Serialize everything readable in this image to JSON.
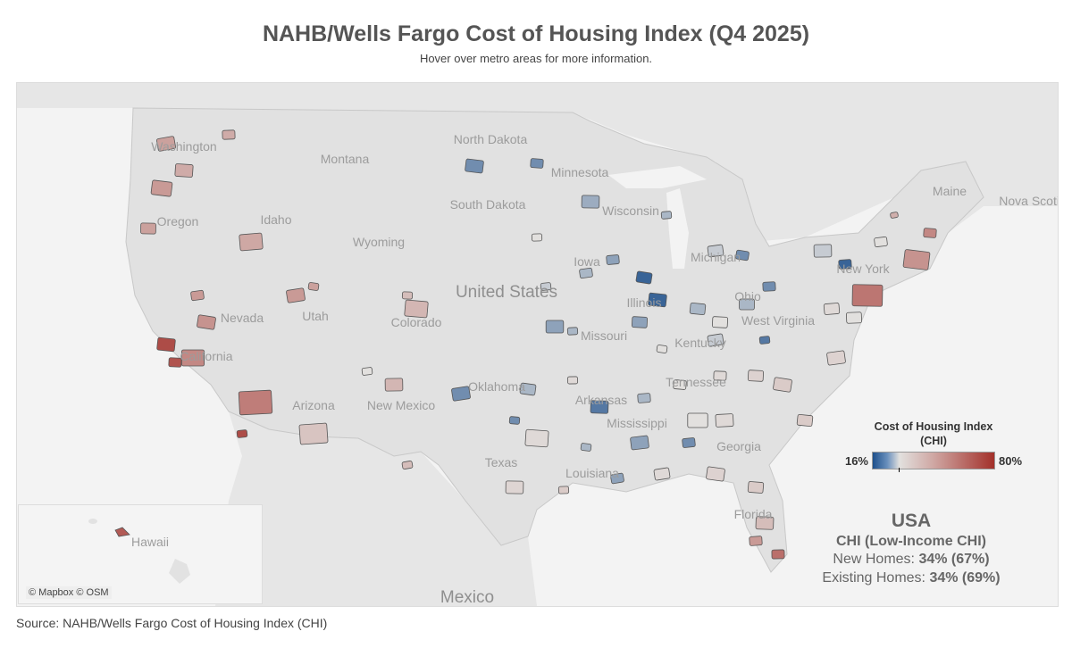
{
  "title": "NAHB/Wells Fargo Cost of Housing Index (Q4 2025)",
  "subtitle": "Hover over metro areas for more information.",
  "map": {
    "labels": [
      "Washington",
      "Montana",
      "North Dakota",
      "Minnesota",
      "South Dakota",
      "Wisconsin",
      "Maine",
      "Nova Scotia",
      "Oregon",
      "Idaho",
      "Wyoming",
      "Iowa",
      "United States",
      "Nevada",
      "Utah",
      "Colorado",
      "Missouri",
      "Illinois",
      "Michigan",
      "Ohio",
      "West Virginia",
      "Kentucky",
      "New York",
      "California",
      "Arizona",
      "New Mexico",
      "Oklahoma",
      "Arkansas",
      "Tennessee",
      "Mississippi",
      "Georgia",
      "Texas",
      "Louisiana",
      "Florida",
      "Mexico"
    ],
    "inset_label": "Hawaii",
    "attribution": "© Mapbox © OSM",
    "metro_chi_percent": [
      48,
      50,
      45,
      48,
      45,
      46,
      50,
      52,
      72,
      70,
      55,
      58,
      72,
      50,
      48,
      42,
      40,
      42,
      38,
      30,
      40,
      22,
      22,
      25,
      30,
      24,
      26,
      18,
      18,
      24,
      24,
      26,
      28,
      22,
      26,
      22,
      20,
      32,
      26,
      24,
      24,
      26,
      32,
      33,
      36,
      26,
      28,
      22,
      26,
      30,
      26,
      22,
      20,
      28,
      30,
      30,
      32,
      28,
      18,
      30,
      44,
      52,
      55,
      60,
      30,
      32,
      34,
      36,
      36,
      34,
      30,
      32,
      22,
      32,
      34,
      36,
      40,
      62,
      50
    ],
    "hawaii_chi_percent": 68
  },
  "legend": {
    "title": "Cost of Housing Index",
    "title2": "(CHI)",
    "min_label": "16%",
    "max_label": "80%",
    "colors": {
      "low": "#1d4f8b",
      "mid": "#e2e0de",
      "high": "#a3302a"
    }
  },
  "summary": {
    "region": "USA",
    "heading": "CHI (Low-Income CHI)",
    "new_label": "New Homes: ",
    "new_value": "34% (67%)",
    "existing_label": "Existing Homes: ",
    "existing_value": "34% (69%)"
  },
  "source": "Source: NAHB/Wells Fargo Cost of Housing Index (CHI)"
}
